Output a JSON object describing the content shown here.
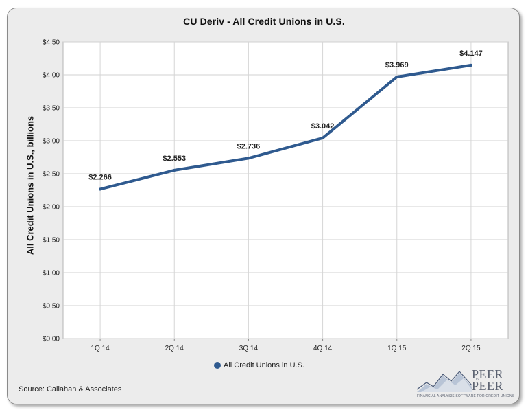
{
  "chart_data": {
    "type": "line",
    "title": "CU Deriv - All Credit Unions in U.S.",
    "ylabel": "All Credit Unions in U.S., billions",
    "xlabel": "",
    "categories": [
      "1Q 14",
      "2Q 14",
      "3Q 14",
      "4Q 14",
      "1Q 15",
      "2Q 15"
    ],
    "series": [
      {
        "name": "All Credit Unions in U.S.",
        "values": [
          2.266,
          2.553,
          2.736,
          3.042,
          3.969,
          4.147
        ],
        "labels": [
          "$2.266",
          "$2.553",
          "$2.736",
          "$3.042",
          "$3.969",
          "$4.147"
        ],
        "color": "#2f5a8f"
      }
    ],
    "ylim": [
      0,
      4.5
    ],
    "y_ticks": [
      0,
      0.5,
      1.0,
      1.5,
      2.0,
      2.5,
      3.0,
      3.5,
      4.0,
      4.5
    ],
    "y_tick_labels": [
      "$0.00",
      "$0.50",
      "$1.00",
      "$1.50",
      "$2.00",
      "$2.50",
      "$3.00",
      "$3.50",
      "$4.00",
      "$4.50"
    ],
    "grid": true,
    "legend": "bottom-center"
  },
  "source": "Source: Callahan & Associates",
  "logo": {
    "name_line1": "PEER",
    "name_mid": "to",
    "name_line2": "PEER",
    "tagline": "FINANCIAL ANALYSIS SOFTWARE FOR CREDIT UNIONS"
  }
}
